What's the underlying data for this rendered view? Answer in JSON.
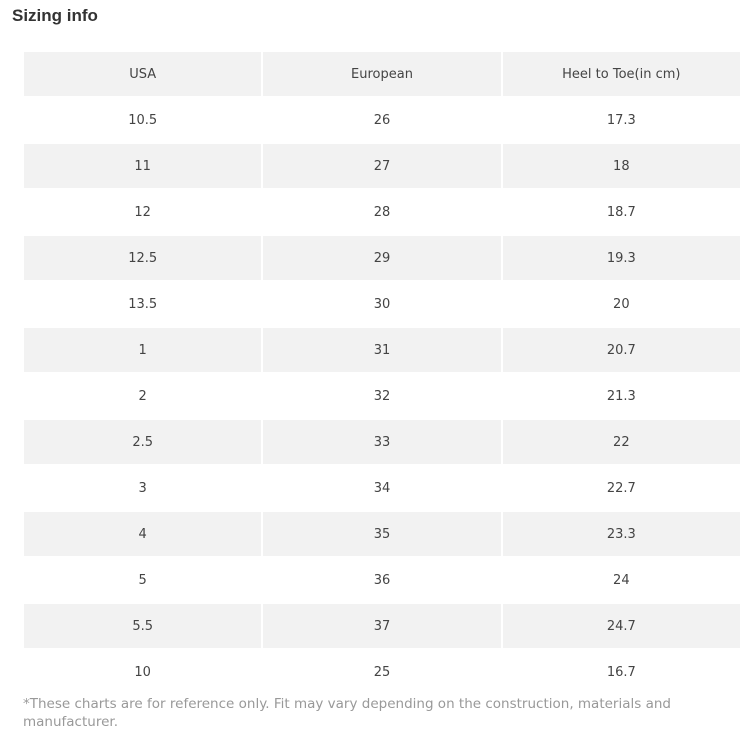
{
  "title": "Sizing info",
  "table": {
    "header": [
      "USA",
      "European",
      "Heel to Toe(in cm)"
    ],
    "rows": [
      [
        "10.5",
        "26",
        "17.3"
      ],
      [
        "11",
        "27",
        "18"
      ],
      [
        "12",
        "28",
        "18.7"
      ],
      [
        "12.5",
        "29",
        "19.3"
      ],
      [
        "13.5",
        "30",
        "20"
      ],
      [
        "1",
        "31",
        "20.7"
      ],
      [
        "2",
        "32",
        "21.3"
      ],
      [
        "2.5",
        "33",
        "22"
      ],
      [
        "3",
        "34",
        "22.7"
      ],
      [
        "4",
        "35",
        "23.3"
      ],
      [
        "5",
        "36",
        "24"
      ],
      [
        "5.5",
        "37",
        "24.7"
      ],
      [
        "10",
        "25",
        "16.7"
      ]
    ]
  },
  "note": "*These charts are for reference only. Fit may vary depending on the construction, materials and manufacturer."
}
